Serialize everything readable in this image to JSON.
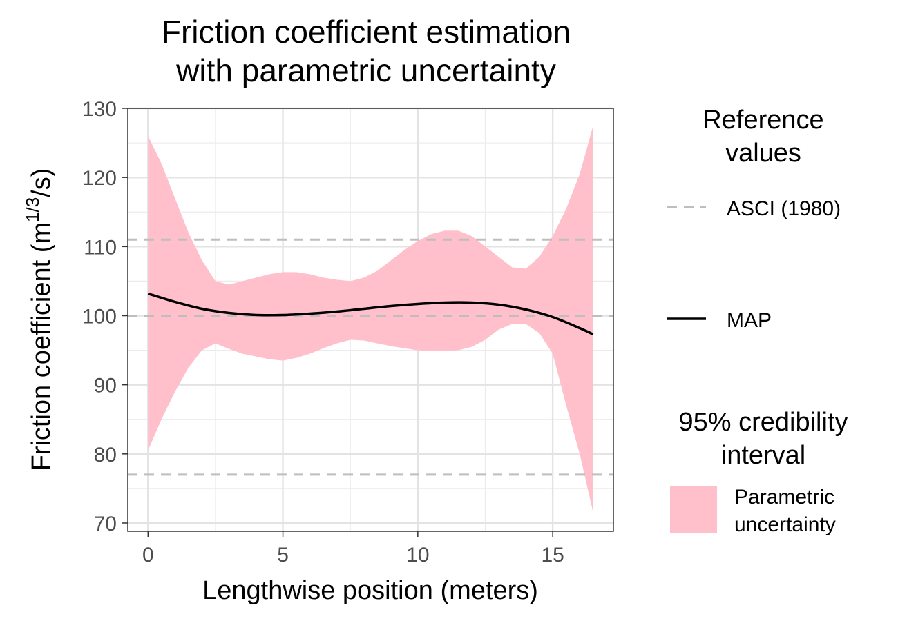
{
  "chart_data": {
    "type": "area",
    "title_line1": "Friction coefficient estimation",
    "title_line2": "with parametric uncertainty",
    "xlabel": "Lengthwise position (meters)",
    "ylabel_prefix": "Friction coefficient (m",
    "ylabel_sup": "1/3",
    "ylabel_suffix": "/s)",
    "xlim": [
      -0.75,
      17.25
    ],
    "ylim": [
      68.8,
      130
    ],
    "x_ticks": [
      0,
      5,
      10,
      15
    ],
    "y_ticks": [
      70,
      80,
      90,
      100,
      110,
      120,
      130
    ],
    "x_tick_labels": [
      "0",
      "5",
      "10",
      "15"
    ],
    "y_tick_labels": [
      "70",
      "80",
      "90",
      "100",
      "110",
      "120",
      "130"
    ],
    "grid": true,
    "legend_position": "right",
    "reference_values": {
      "legend_title_line1": "Reference",
      "legend_title_line2": "values",
      "entries": [
        {
          "label": "ASCI (1980)",
          "style": "dashed",
          "color": "#bebebe"
        },
        {
          "label": "MAP",
          "style": "solid",
          "color": "#000000"
        }
      ],
      "asci_levels": [
        111,
        100,
        77
      ]
    },
    "interval_legend": {
      "title_line1": "95% credibility",
      "title_line2": "interval",
      "label_line1": "Parametric",
      "label_line2": "uncertainty",
      "color": "#ffc0cb"
    },
    "series": [
      {
        "name": "MAP",
        "color": "#000000",
        "x": [
          0,
          1,
          2,
          3,
          4,
          5,
          6,
          7,
          8,
          9,
          10,
          11,
          12,
          13,
          14,
          15,
          16,
          16.5
        ],
        "values": [
          103.2,
          102.0,
          101.0,
          100.4,
          100.1,
          100.1,
          100.3,
          100.6,
          101.0,
          101.4,
          101.7,
          101.9,
          101.9,
          101.6,
          100.9,
          99.8,
          98.2,
          97.3
        ]
      },
      {
        "name": "Parametric uncertainty",
        "color": "#ffc0cb",
        "x": [
          0,
          0.5,
          1,
          1.5,
          2,
          2.5,
          3,
          3.5,
          4,
          4.5,
          5,
          5.5,
          6,
          6.5,
          7,
          7.5,
          8,
          8.5,
          9,
          9.5,
          10,
          10.5,
          11,
          11.5,
          12,
          12.5,
          13,
          13.5,
          14,
          14.5,
          15,
          15.5,
          16,
          16.5
        ],
        "upper": [
          126,
          122,
          117,
          112,
          108,
          105,
          104.5,
          105,
          105.5,
          106,
          106.3,
          106.3,
          106,
          105.5,
          105.2,
          105,
          105.5,
          106.5,
          108,
          109.5,
          110.8,
          111.8,
          112.3,
          112.3,
          111.5,
          110,
          108.5,
          107,
          106.8,
          108.5,
          111.5,
          115.5,
          120.5,
          127.5
        ],
        "lower": [
          80.5,
          85,
          89,
          92.5,
          95,
          96,
          95.2,
          94.5,
          94.1,
          93.7,
          93.5,
          93.9,
          94.5,
          95.3,
          96,
          96.5,
          96.4,
          96.0,
          95.6,
          95.3,
          95.0,
          94.9,
          94.9,
          95.0,
          95.5,
          96.5,
          98,
          98.8,
          98.8,
          97.5,
          94.5,
          87,
          80,
          71.5
        ]
      }
    ]
  }
}
